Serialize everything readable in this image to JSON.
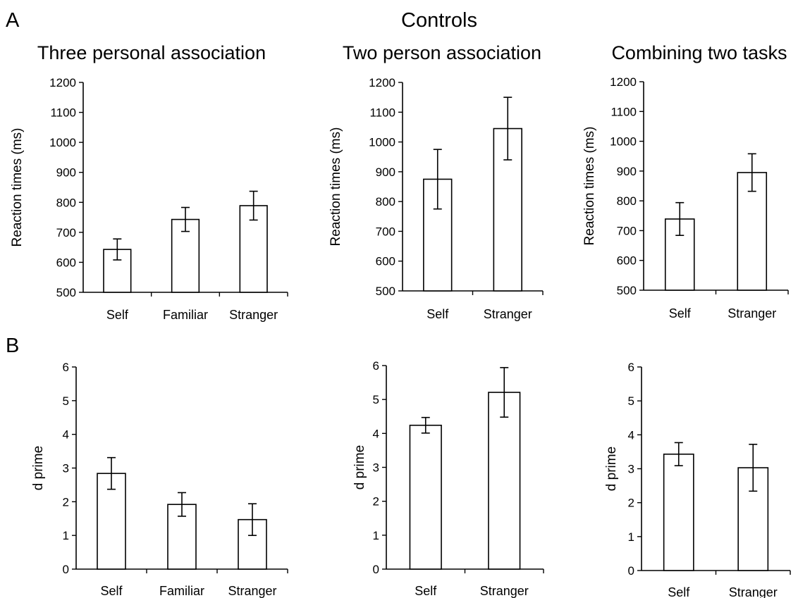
{
  "figure": {
    "main_title": "Controls",
    "panel_labels": [
      "A",
      "B"
    ]
  },
  "chart_data": [
    {
      "type": "bar",
      "row": "A",
      "title": "Three personal association",
      "ylabel": "Reaction times (ms)",
      "xlabel": "",
      "categories": [
        "Self",
        "Familiar",
        "Stranger"
      ],
      "values": [
        643,
        743,
        789
      ],
      "errors": [
        35,
        40,
        48
      ],
      "ylim": [
        500,
        1200
      ],
      "yticks": [
        500,
        600,
        700,
        800,
        900,
        1000,
        1100,
        1200
      ],
      "grid": false
    },
    {
      "type": "bar",
      "row": "A",
      "title": "Two person association",
      "ylabel": "Reaction times (ms)",
      "xlabel": "",
      "categories": [
        "Self",
        "Stranger"
      ],
      "values": [
        875,
        1045
      ],
      "errors": [
        100,
        105
      ],
      "ylim": [
        500,
        1200
      ],
      "yticks": [
        500,
        600,
        700,
        800,
        900,
        1000,
        1100,
        1200
      ],
      "grid": false
    },
    {
      "type": "bar",
      "row": "A",
      "title": "Combining two tasks",
      "ylabel": "Reaction times (ms)",
      "xlabel": "",
      "categories": [
        "Self",
        "Stranger"
      ],
      "values": [
        739,
        895
      ],
      "errors": [
        55,
        63
      ],
      "ylim": [
        500,
        1200
      ],
      "yticks": [
        500,
        600,
        700,
        800,
        900,
        1000,
        1100,
        1200
      ],
      "grid": false
    },
    {
      "type": "bar",
      "row": "B",
      "title": "",
      "ylabel": "d prime",
      "xlabel": "",
      "categories": [
        "Self",
        "Familiar",
        "Stranger"
      ],
      "values": [
        2.84,
        1.92,
        1.47
      ],
      "errors": [
        0.47,
        0.35,
        0.47
      ],
      "ylim": [
        0,
        6
      ],
      "yticks": [
        0,
        1,
        2,
        3,
        4,
        5,
        6
      ],
      "grid": false
    },
    {
      "type": "bar",
      "row": "B",
      "title": "",
      "ylabel": "d prime",
      "xlabel": "",
      "categories": [
        "Self",
        "Stranger"
      ],
      "values": [
        4.24,
        5.21
      ],
      "errors": [
        0.23,
        0.73
      ],
      "ylim": [
        0,
        6
      ],
      "yticks": [
        0,
        1,
        2,
        3,
        4,
        5,
        6
      ],
      "grid": false
    },
    {
      "type": "bar",
      "row": "B",
      "title": "",
      "ylabel": "d prime",
      "xlabel": "",
      "categories": [
        "Self",
        "Stranger"
      ],
      "values": [
        3.43,
        3.03
      ],
      "errors": [
        0.34,
        0.69
      ],
      "ylim": [
        0,
        6
      ],
      "yticks": [
        0,
        1,
        2,
        3,
        4,
        5,
        6
      ],
      "grid": false
    }
  ]
}
